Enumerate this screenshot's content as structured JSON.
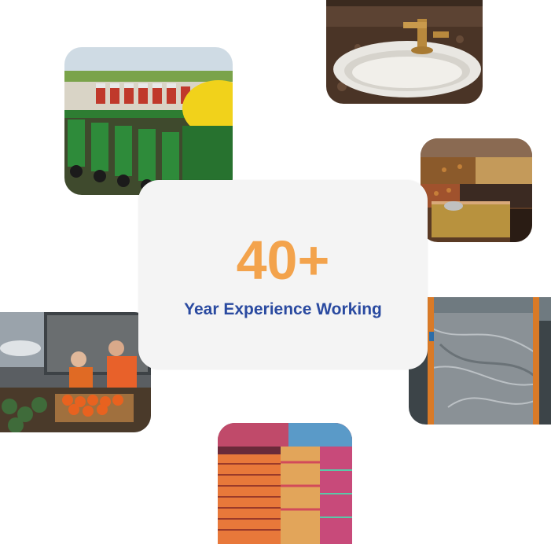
{
  "stat": {
    "number": "40+",
    "label": "Year Experience Working"
  },
  "colors": {
    "number": "#f3a34c",
    "label": "#2a4aa0",
    "card": "#f4f4f4"
  },
  "tiles": [
    {
      "name": "farm-planter-photo",
      "subject": "agricultural machinery"
    },
    {
      "name": "washbasin-photo",
      "subject": "sink and faucet"
    },
    {
      "name": "spices-photo",
      "subject": "spices and seeds"
    },
    {
      "name": "cargo-produce-photo",
      "subject": "air cargo produce"
    },
    {
      "name": "marble-slab-photo",
      "subject": "marble slab"
    },
    {
      "name": "textiles-photo",
      "subject": "rolled fabrics"
    }
  ]
}
